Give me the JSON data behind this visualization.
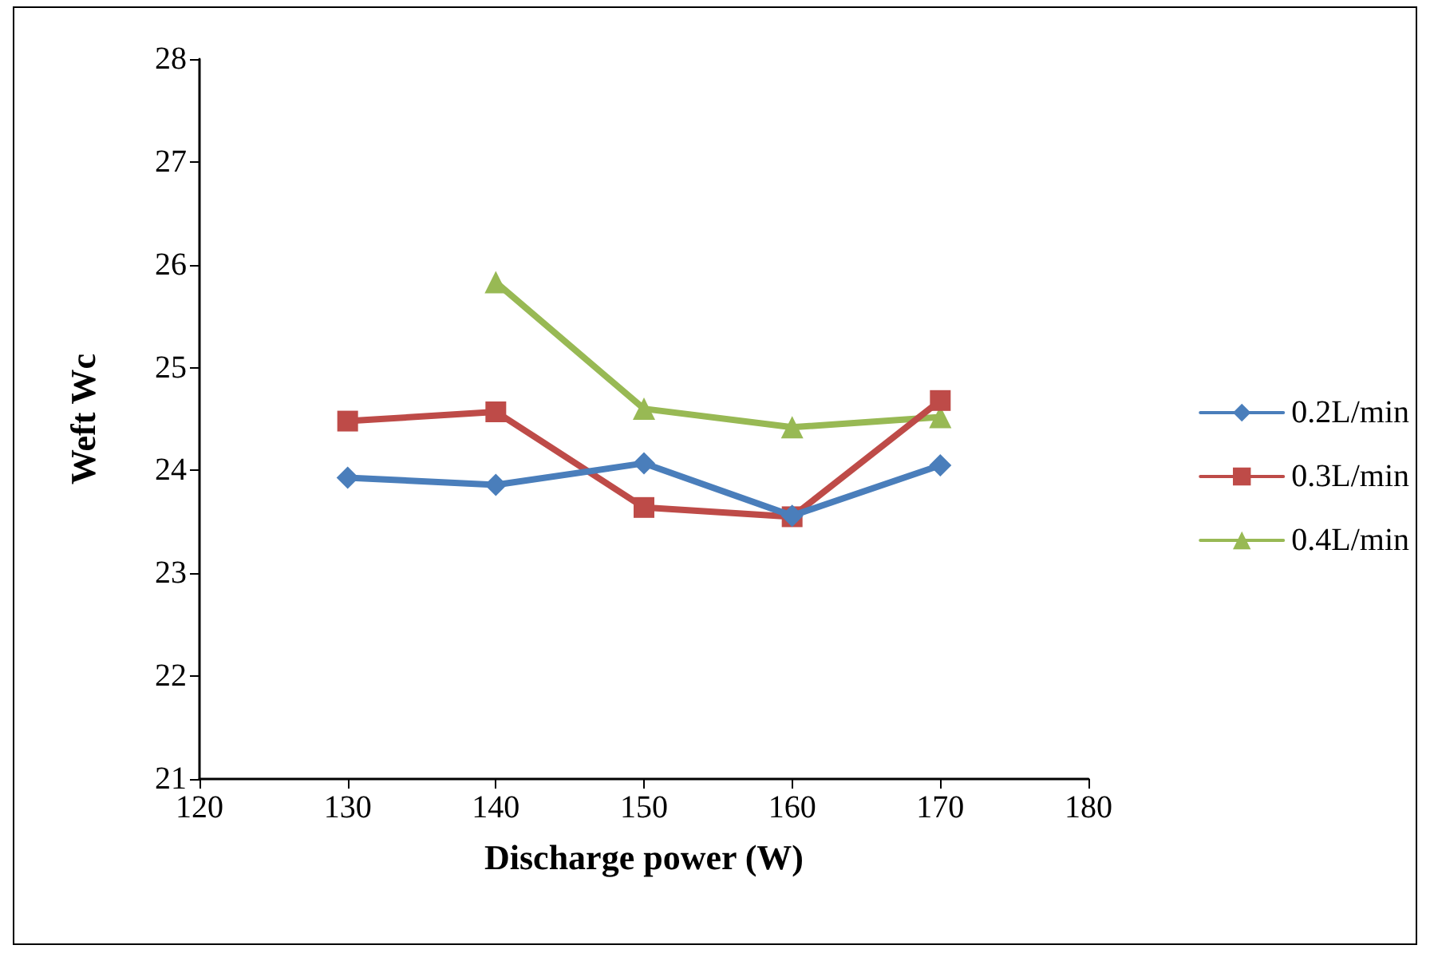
{
  "chart_data": {
    "type": "line",
    "xlabel": "Discharge power (W)",
    "ylabel": "Weft Wc",
    "x": [
      130,
      140,
      150,
      160,
      170
    ],
    "series": [
      {
        "name": "0.2L/min",
        "color": "#4a7ebb",
        "marker": "diamond",
        "values": [
          23.93,
          23.86,
          24.07,
          23.56,
          24.05
        ]
      },
      {
        "name": "0.3L/min",
        "color": "#be4b48",
        "marker": "square",
        "values": [
          24.48,
          24.57,
          23.64,
          23.55,
          24.68
        ]
      },
      {
        "name": "0.4L/min",
        "color": "#98b954",
        "marker": "triangle",
        "values": [
          null,
          25.83,
          24.6,
          24.42,
          24.52
        ]
      }
    ],
    "xlim": [
      120,
      180
    ],
    "xticks": [
      120,
      130,
      140,
      150,
      160,
      170,
      180
    ],
    "ylim": [
      21,
      28
    ],
    "yticks": [
      21,
      22,
      23,
      24,
      25,
      26,
      27,
      28
    ],
    "grid": false,
    "legend": "right",
    "line_style": "solid"
  }
}
